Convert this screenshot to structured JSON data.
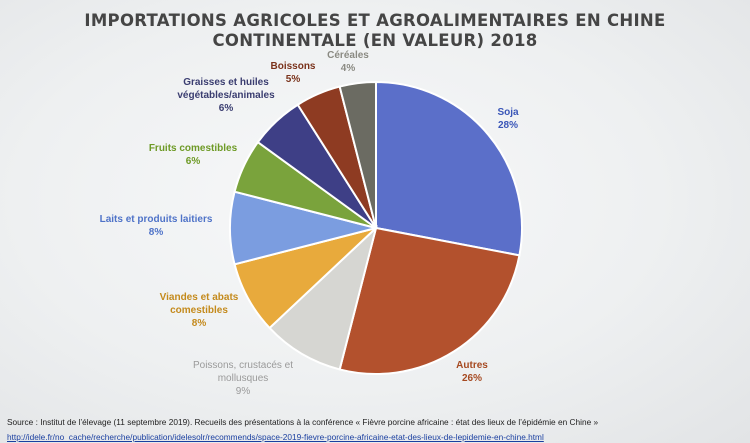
{
  "chart_data": {
    "type": "pie",
    "title_lines": [
      "IMPORTATIONS AGRICOLES ET AGROALIMENTAIRES EN CHINE",
      "CONTINENTALE (EN VALEUR) 2018"
    ],
    "slices": [
      {
        "label": "Soja",
        "value": 28,
        "value_label": "28%",
        "color": "#5b6fc9",
        "text_color": "#3a56b8"
      },
      {
        "label": "Autres",
        "value": 26,
        "value_label": "26%",
        "color": "#b3512d",
        "text_color": "#a64a22"
      },
      {
        "label": "Poissons, crustacés et mollusques",
        "value": 9,
        "value_label": "9%",
        "color": "#d6d6d2",
        "text_color": "#9a9a9a"
      },
      {
        "label": "Viandes et abats comestibles",
        "value": 8,
        "value_label": "8%",
        "color": "#e8aa3c",
        "text_color": "#c48a1c"
      },
      {
        "label": "Laits et produits laitiers",
        "value": 8,
        "value_label": "8%",
        "color": "#7b9de0",
        "text_color": "#4f73c8"
      },
      {
        "label": "Fruits comestibles",
        "value": 6,
        "value_label": "6%",
        "color": "#7aa33c",
        "text_color": "#6e9a26"
      },
      {
        "label": "Graisses et huiles végétables/animales",
        "value": 6,
        "value_label": "6%",
        "color": "#3e3f86",
        "text_color": "#3a3d70"
      },
      {
        "label": "Boissons",
        "value": 5,
        "value_label": "5%",
        "color": "#8e3b22",
        "text_color": "#7a321b"
      },
      {
        "label": "Céréales",
        "value": 4,
        "value_label": "4%",
        "color": "#6b6b62",
        "text_color": "#8a8a82"
      }
    ],
    "start_angle_deg": 0,
    "direction": "clockwise",
    "legend": "none"
  },
  "source": {
    "text": "Source : Institut de l’élevage (11 septembre 2019). Recueils des présentations à la conférence « Fièvre porcine africaine : état des lieux de l’épidémie en Chine »",
    "url": "http://idele.fr/no_cache/recherche/publication/idelesolr/recommends/space-2019-fievre-porcine-africaine-etat-des-lieux-de-lepidemie-en-chine.html"
  }
}
